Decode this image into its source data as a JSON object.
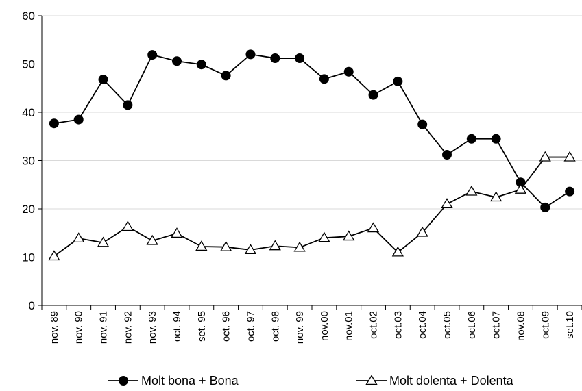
{
  "chart_data": {
    "type": "line",
    "categories": [
      "nov. 89",
      "nov. 90",
      "nov. 91",
      "nov. 92",
      "nov. 93",
      "oct. 94",
      "set. 95",
      "oct. 96",
      "oct. 97",
      "oct. 98",
      "nov. 99",
      "nov.00",
      "nov.01",
      "oct.02",
      "oct.03",
      "oct.04",
      "oct.05",
      "oct.06",
      "oct.07",
      "nov.08",
      "oct.09",
      "set.10"
    ],
    "y_ticks": [
      "0",
      "10",
      "20",
      "30",
      "40",
      "50",
      "60"
    ],
    "ylim": [
      0,
      60
    ],
    "grid": "horizontal",
    "legend_position": "bottom",
    "series": [
      {
        "name": "Molt bona + Bona",
        "marker": "filled-circle",
        "color": "#000000",
        "values": [
          37.7,
          38.5,
          46.8,
          41.5,
          51.9,
          50.6,
          49.9,
          47.6,
          52.0,
          51.2,
          51.2,
          46.9,
          48.4,
          43.6,
          46.4,
          37.5,
          31.2,
          34.5,
          34.5,
          25.5,
          20.3,
          23.6
        ]
      },
      {
        "name": "Molt dolenta + Dolenta",
        "marker": "open-triangle",
        "color": "#000000",
        "values": [
          10.2,
          13.9,
          13.0,
          16.3,
          13.4,
          14.9,
          12.2,
          12.1,
          11.5,
          12.3,
          12.0,
          14.0,
          14.3,
          16.0,
          11.0,
          15.1,
          21.0,
          23.6,
          22.4,
          24.0,
          30.7,
          30.7
        ]
      }
    ]
  }
}
